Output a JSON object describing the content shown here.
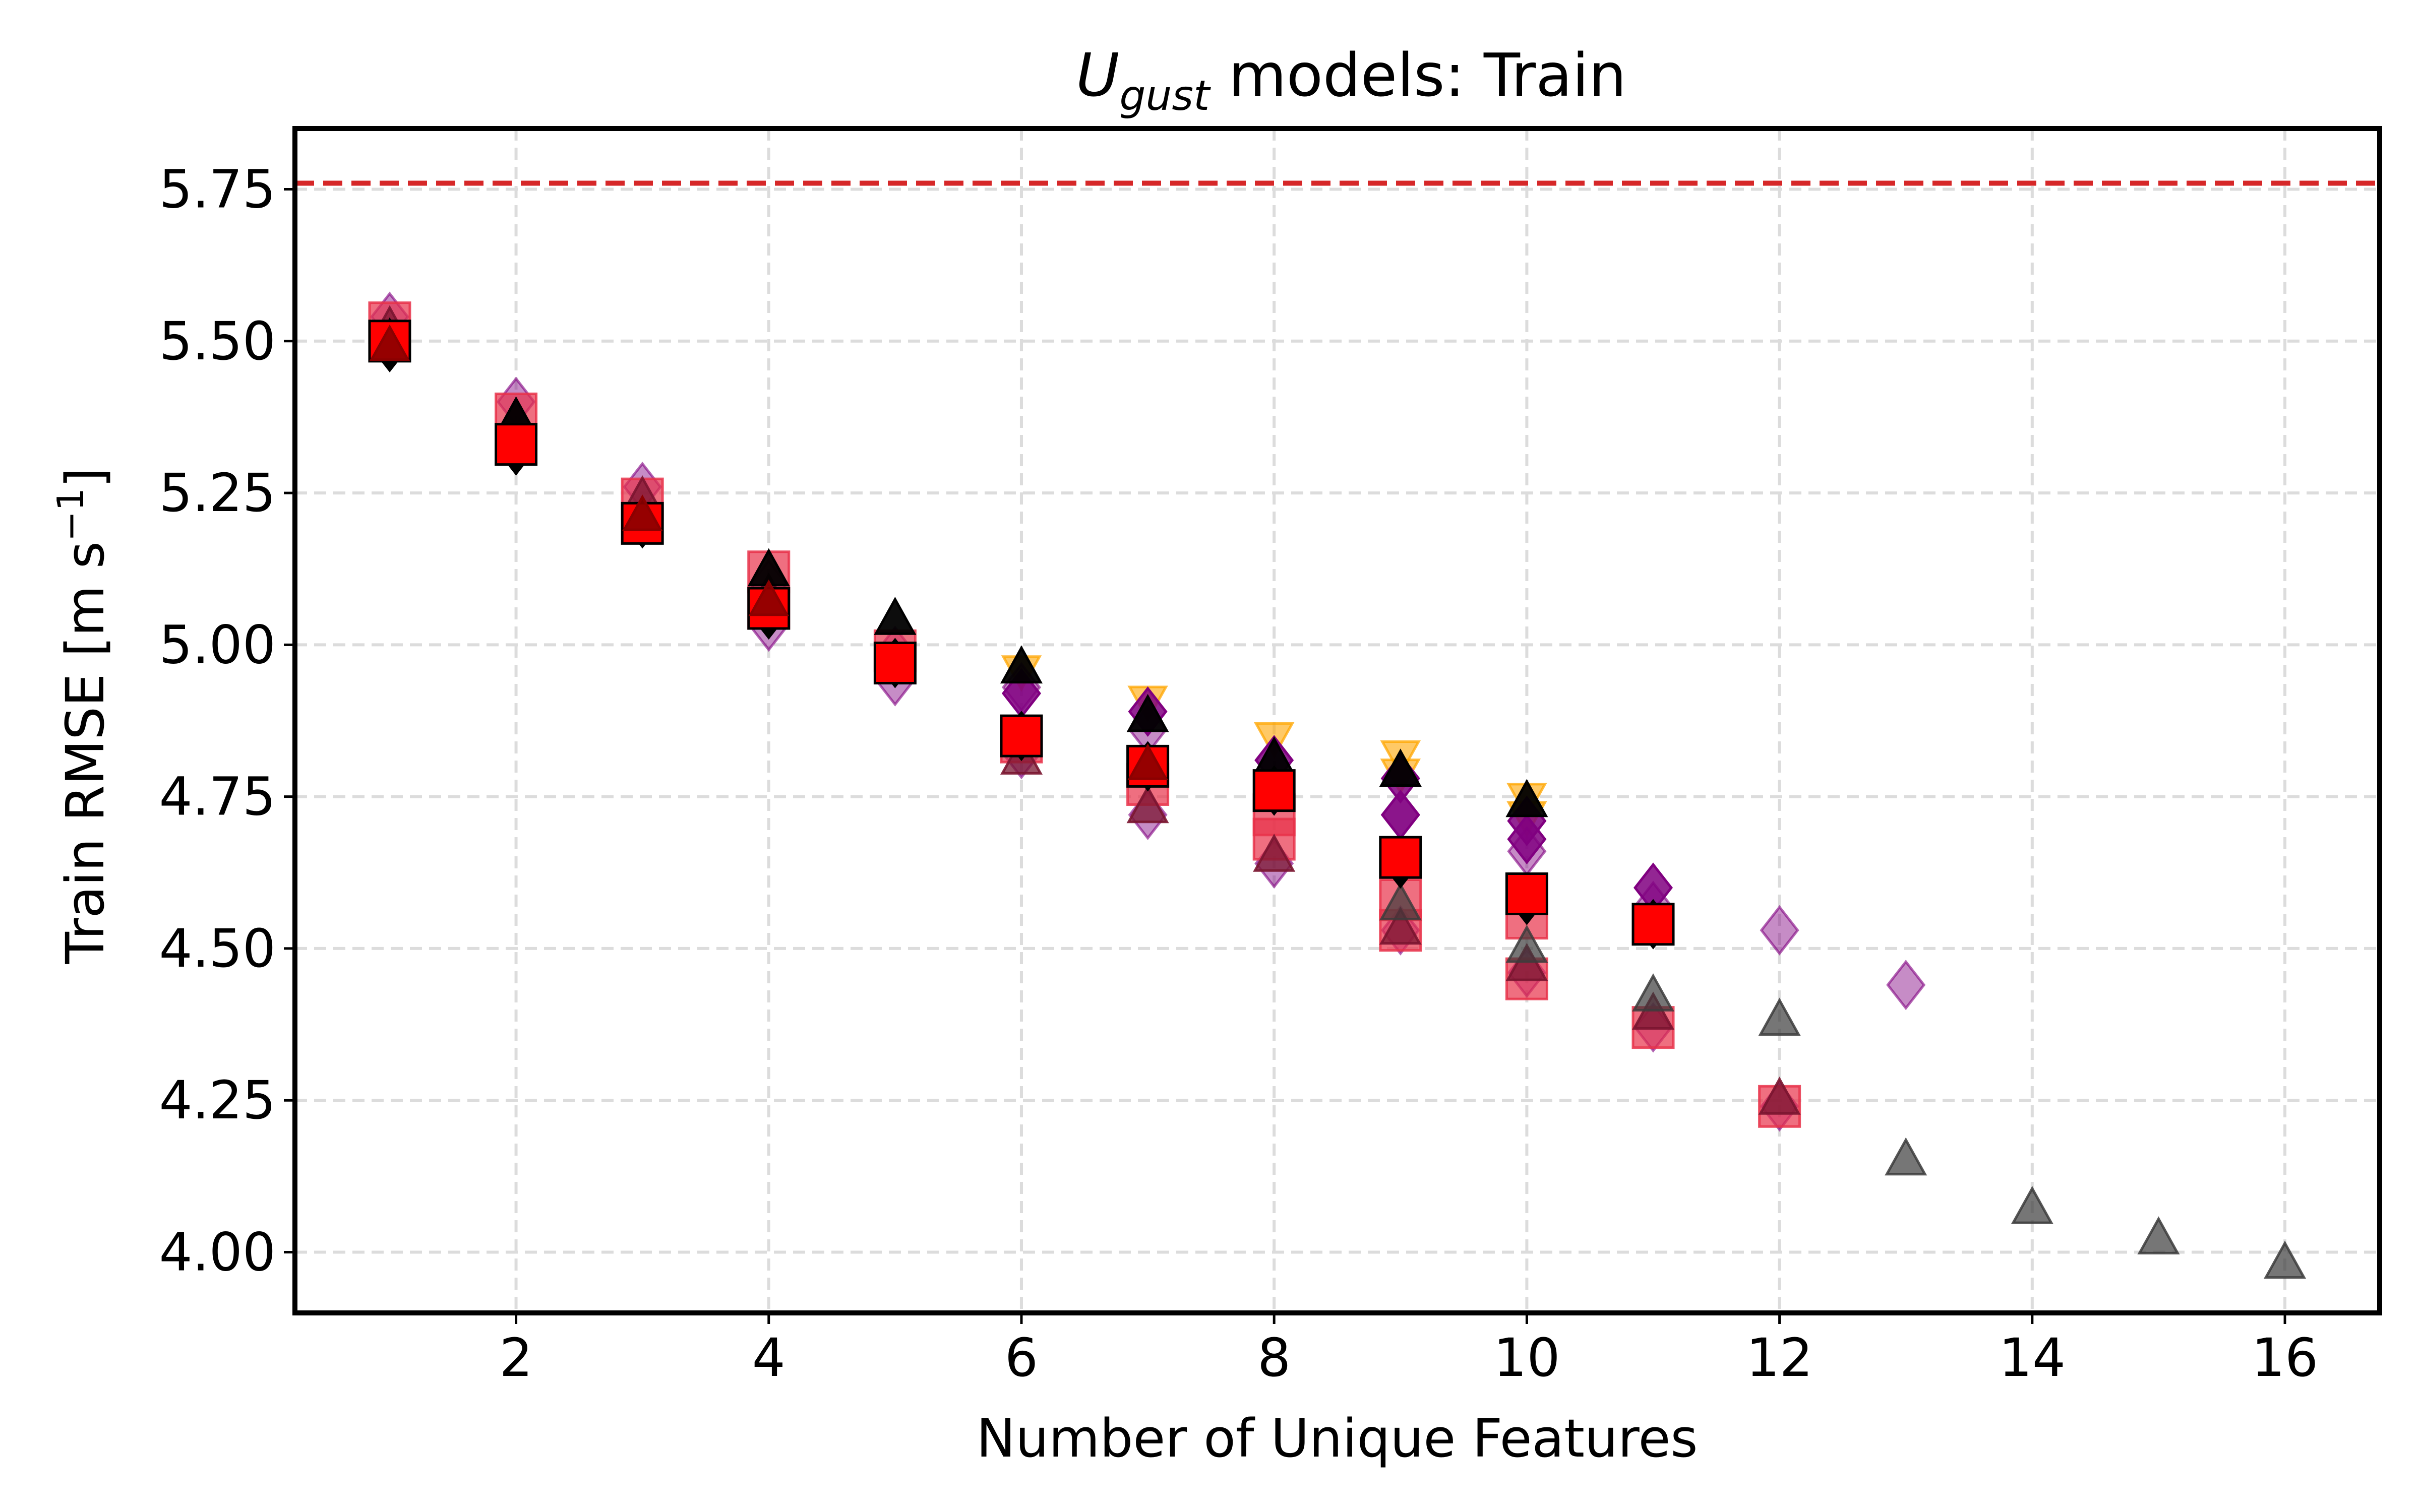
{
  "chart_data": {
    "type": "scatter",
    "title_main": "U",
    "title_sub": "gust",
    "title_rest": " models: Train",
    "xlabel": "Number of Unique Features",
    "ylabel_prefix": "Train RMSE [m s",
    "ylabel_sup": "−1",
    "ylabel_suffix": "]",
    "xlim": [
      0.25,
      16.75
    ],
    "ylim": [
      3.9,
      5.85
    ],
    "x_ticks": [
      2,
      4,
      6,
      8,
      10,
      12,
      14,
      16
    ],
    "x_tick_labels": [
      "2",
      "4",
      "6",
      "8",
      "10",
      "12",
      "14",
      "16"
    ],
    "y_ticks": [
      4.0,
      4.25,
      4.5,
      4.75,
      5.0,
      5.25,
      5.5,
      5.75
    ],
    "y_tick_labels": [
      "4.00",
      "4.25",
      "4.50",
      "4.75",
      "5.00",
      "5.25",
      "5.50",
      "5.75"
    ],
    "grid": true,
    "reference_line": {
      "y": 5.76,
      "color": "#d62728",
      "style": "dashed"
    },
    "colors": {
      "orange": "#ffa500",
      "purple": "#800080",
      "light_purple": "#bf7fbf",
      "red": "#ff0000",
      "crimson": "#e8324a",
      "maroon": "#7a1530",
      "gray": "#3c3c3c",
      "black": "#000000"
    },
    "series": [
      {
        "marker": "triangle-down",
        "color": "#ffa500",
        "alpha": 0.6,
        "size": 40,
        "points": [
          [
            6,
            4.96
          ],
          [
            7,
            4.91
          ],
          [
            8,
            4.85
          ],
          [
            9,
            4.82
          ],
          [
            9,
            4.79
          ],
          [
            10,
            4.75
          ],
          [
            10,
            4.72
          ]
        ]
      },
      {
        "marker": "diamond",
        "color": "#800080",
        "alpha": 0.45,
        "size": 46,
        "points": [
          [
            1,
            5.54
          ],
          [
            2,
            5.4
          ],
          [
            3,
            5.26
          ],
          [
            4,
            5.1
          ],
          [
            4,
            5.03
          ],
          [
            5,
            4.99
          ],
          [
            5,
            4.94
          ],
          [
            6,
            4.93
          ],
          [
            6,
            4.82
          ],
          [
            7,
            4.86
          ],
          [
            7,
            4.72
          ],
          [
            8,
            4.76
          ],
          [
            8,
            4.64
          ],
          [
            9,
            4.72
          ],
          [
            9,
            4.53
          ],
          [
            10,
            4.66
          ],
          [
            10,
            4.46
          ],
          [
            11,
            4.57
          ],
          [
            11,
            4.37
          ],
          [
            12,
            4.24
          ],
          [
            12,
            4.53
          ],
          [
            13,
            4.44
          ]
        ]
      },
      {
        "marker": "diamond",
        "color": "#800080",
        "alpha": 0.85,
        "size": 46,
        "points": [
          [
            6,
            4.92
          ],
          [
            7,
            4.89
          ],
          [
            8,
            4.81
          ],
          [
            9,
            4.78
          ],
          [
            9,
            4.72
          ],
          [
            10,
            4.71
          ],
          [
            10,
            4.68
          ],
          [
            11,
            4.6
          ]
        ]
      },
      {
        "marker": "square",
        "color": "#e8324a",
        "alpha": 0.7,
        "size": 40,
        "points": [
          [
            1,
            5.53
          ],
          [
            2,
            5.38
          ],
          [
            3,
            5.24
          ],
          [
            4,
            5.12
          ],
          [
            4,
            5.06
          ],
          [
            5,
            4.99
          ],
          [
            6,
            4.84
          ],
          [
            7,
            4.77
          ],
          [
            8,
            4.72
          ],
          [
            8,
            4.68
          ],
          [
            9,
            4.58
          ],
          [
            9,
            4.53
          ],
          [
            10,
            4.55
          ],
          [
            10,
            4.45
          ],
          [
            11,
            4.37
          ],
          [
            12,
            4.24
          ]
        ]
      },
      {
        "marker": "triangle-up",
        "color": "#7a1530",
        "alpha": 0.75,
        "size": 42,
        "points": [
          [
            1,
            5.52
          ],
          [
            2,
            5.37
          ],
          [
            3,
            5.24
          ],
          [
            4,
            5.08
          ],
          [
            5,
            4.97
          ],
          [
            6,
            4.81
          ],
          [
            7,
            4.73
          ],
          [
            8,
            4.65
          ],
          [
            9,
            4.53
          ],
          [
            10,
            4.47
          ],
          [
            11,
            4.39
          ],
          [
            12,
            4.25
          ]
        ]
      },
      {
        "marker": "triangle-up",
        "color": "#3c3c3c",
        "alpha": 0.7,
        "size": 42,
        "points": [
          [
            9,
            4.57
          ],
          [
            10,
            4.5
          ],
          [
            11,
            4.42
          ],
          [
            12,
            4.38
          ],
          [
            13,
            4.15
          ],
          [
            14,
            4.07
          ],
          [
            15,
            4.02
          ],
          [
            16,
            3.98
          ]
        ]
      },
      {
        "marker": "diamond",
        "color": "#000000",
        "alpha": 1.0,
        "size": 46,
        "points": [
          [
            1,
            5.49
          ],
          [
            2,
            5.32
          ],
          [
            3,
            5.2
          ],
          [
            4,
            5.05
          ],
          [
            5,
            4.97
          ],
          [
            6,
            4.85
          ],
          [
            7,
            4.8
          ],
          [
            8,
            4.76
          ],
          [
            9,
            4.64
          ],
          [
            10,
            4.58
          ],
          [
            11,
            4.54
          ]
        ]
      },
      {
        "marker": "triangle-up",
        "color": "#000000",
        "alpha": 0.95,
        "size": 42,
        "points": [
          [
            1,
            5.5
          ],
          [
            2,
            5.37
          ],
          [
            4,
            5.12
          ],
          [
            5,
            5.04
          ],
          [
            6,
            4.96
          ],
          [
            7,
            4.88
          ],
          [
            8,
            4.81
          ],
          [
            9,
            4.79
          ],
          [
            10,
            4.74
          ]
        ]
      },
      {
        "marker": "square",
        "color": "#ff0000",
        "alpha": 1.0,
        "size": 40,
        "outlined": true,
        "points": [
          [
            1,
            5.5
          ],
          [
            2,
            5.33
          ],
          [
            3,
            5.2
          ],
          [
            4,
            5.06
          ],
          [
            5,
            4.97
          ],
          [
            6,
            4.85
          ],
          [
            7,
            4.8
          ],
          [
            8,
            4.76
          ],
          [
            9,
            4.65
          ],
          [
            10,
            4.59
          ],
          [
            11,
            4.54
          ]
        ]
      },
      {
        "marker": "triangle-up",
        "color": "#8b0000",
        "alpha": 0.9,
        "size": 40,
        "points": [
          [
            1,
            5.49
          ],
          [
            3,
            5.21
          ],
          [
            4,
            5.07
          ],
          [
            7,
            4.8
          ]
        ]
      }
    ]
  }
}
